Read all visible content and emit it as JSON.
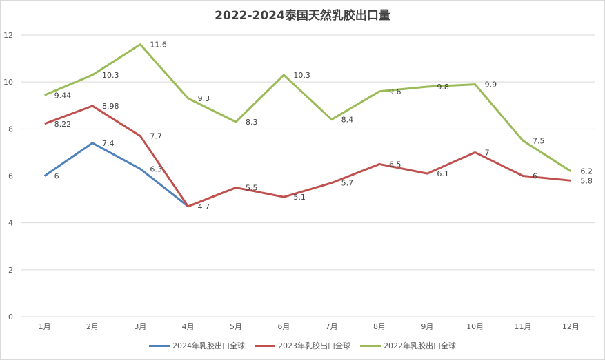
{
  "chart_data": {
    "type": "line",
    "title": "2022-2024泰国天然乳胶出口量",
    "categories": [
      "1月",
      "2月",
      "3月",
      "4月",
      "5月",
      "6月",
      "7月",
      "8月",
      "9月",
      "10月",
      "11月",
      "12月"
    ],
    "ylim": [
      0,
      12
    ],
    "yticks": [
      "0",
      "2",
      "4",
      "6",
      "8",
      "10",
      "12"
    ],
    "grid": true,
    "legend_position": "bottom",
    "series": [
      {
        "name": "2024年乳胶出口全球",
        "color": "#4f81bd",
        "values": [
          6,
          7.4,
          6.3,
          4.7,
          null,
          null,
          null,
          null,
          null,
          null,
          null,
          null
        ],
        "labels": [
          "6",
          "7.4",
          "6.3",
          "",
          "",
          "",
          "",
          "",
          "",
          "",
          "",
          ""
        ]
      },
      {
        "name": "2023年乳胶出口全球",
        "color": "#c0504d",
        "values": [
          8.22,
          8.98,
          7.7,
          4.7,
          5.5,
          5.1,
          5.7,
          6.5,
          6.1,
          7,
          6,
          5.8
        ],
        "labels": [
          "8.22",
          "8.98",
          "7.7",
          "4.7",
          "5.5",
          "5.1",
          "5.7",
          "6.5",
          "6.1",
          "7",
          "6",
          "5.8"
        ]
      },
      {
        "name": "2022年乳胶出口全球",
        "color": "#9bbb59",
        "values": [
          9.44,
          10.3,
          11.6,
          9.3,
          8.3,
          10.3,
          8.4,
          9.6,
          9.8,
          9.9,
          7.5,
          6.2
        ],
        "labels": [
          "9.44",
          "10.3",
          "11.6",
          "9.3",
          "8.3",
          "10.3",
          "8.4",
          "9.6",
          "9.8",
          "9.9",
          "7.5",
          "6.2"
        ]
      }
    ]
  }
}
